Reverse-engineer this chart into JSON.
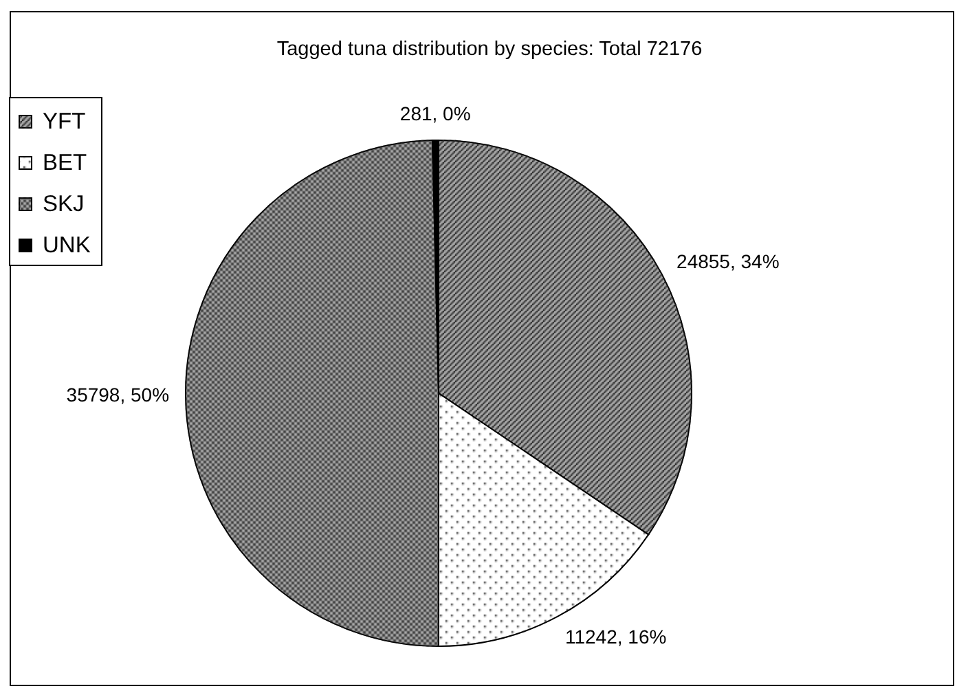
{
  "chart_data": {
    "type": "pie",
    "title": "Tagged tuna distribution by species: Total 72176",
    "categories": [
      "YFT",
      "BET",
      "SKJ",
      "UNK"
    ],
    "values": [
      24855,
      11242,
      35798,
      281
    ],
    "colors": [
      "#b4b4b4",
      "#ffffff",
      "#a6a6a6",
      "#000000"
    ],
    "value_labels": [
      "24855, 34%",
      "11242, 16%",
      "35798, 50%",
      "281, 0%"
    ],
    "legend": "top left"
  }
}
